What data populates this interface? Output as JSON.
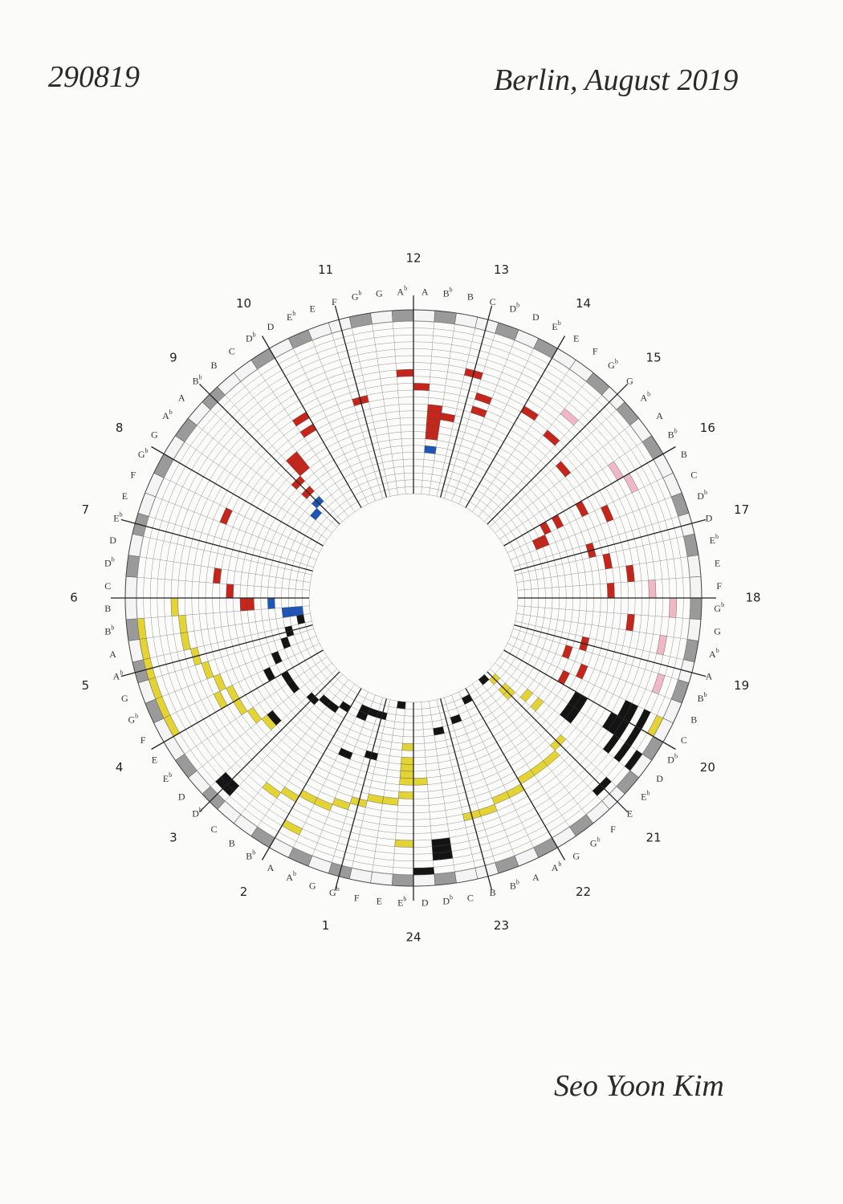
{
  "header": {
    "date": "290819",
    "place": "Berlin, August 2019"
  },
  "hours": [
    "1",
    "2",
    "3",
    "4",
    "5",
    "6",
    "7",
    "8",
    "9",
    "10",
    "11",
    "12",
    "13",
    "14",
    "15",
    "16",
    "17",
    "18",
    "19",
    "20",
    "21",
    "22",
    "23",
    "24"
  ],
  "notes": [
    {
      "letter": "A"
    },
    {
      "letter": "B",
      "accidental": "b"
    },
    {
      "letter": "B"
    },
    {
      "letter": "C"
    },
    {
      "letter": "D",
      "accidental": "b"
    },
    {
      "letter": "D"
    },
    {
      "letter": "E",
      "accidental": "b"
    },
    {
      "letter": "E"
    },
    {
      "letter": "F"
    },
    {
      "letter": "G",
      "accidental": "b"
    },
    {
      "letter": "G"
    },
    {
      "letter": "A",
      "accidental": "b"
    }
  ],
  "signature": "Seo Yoon Kim"
}
